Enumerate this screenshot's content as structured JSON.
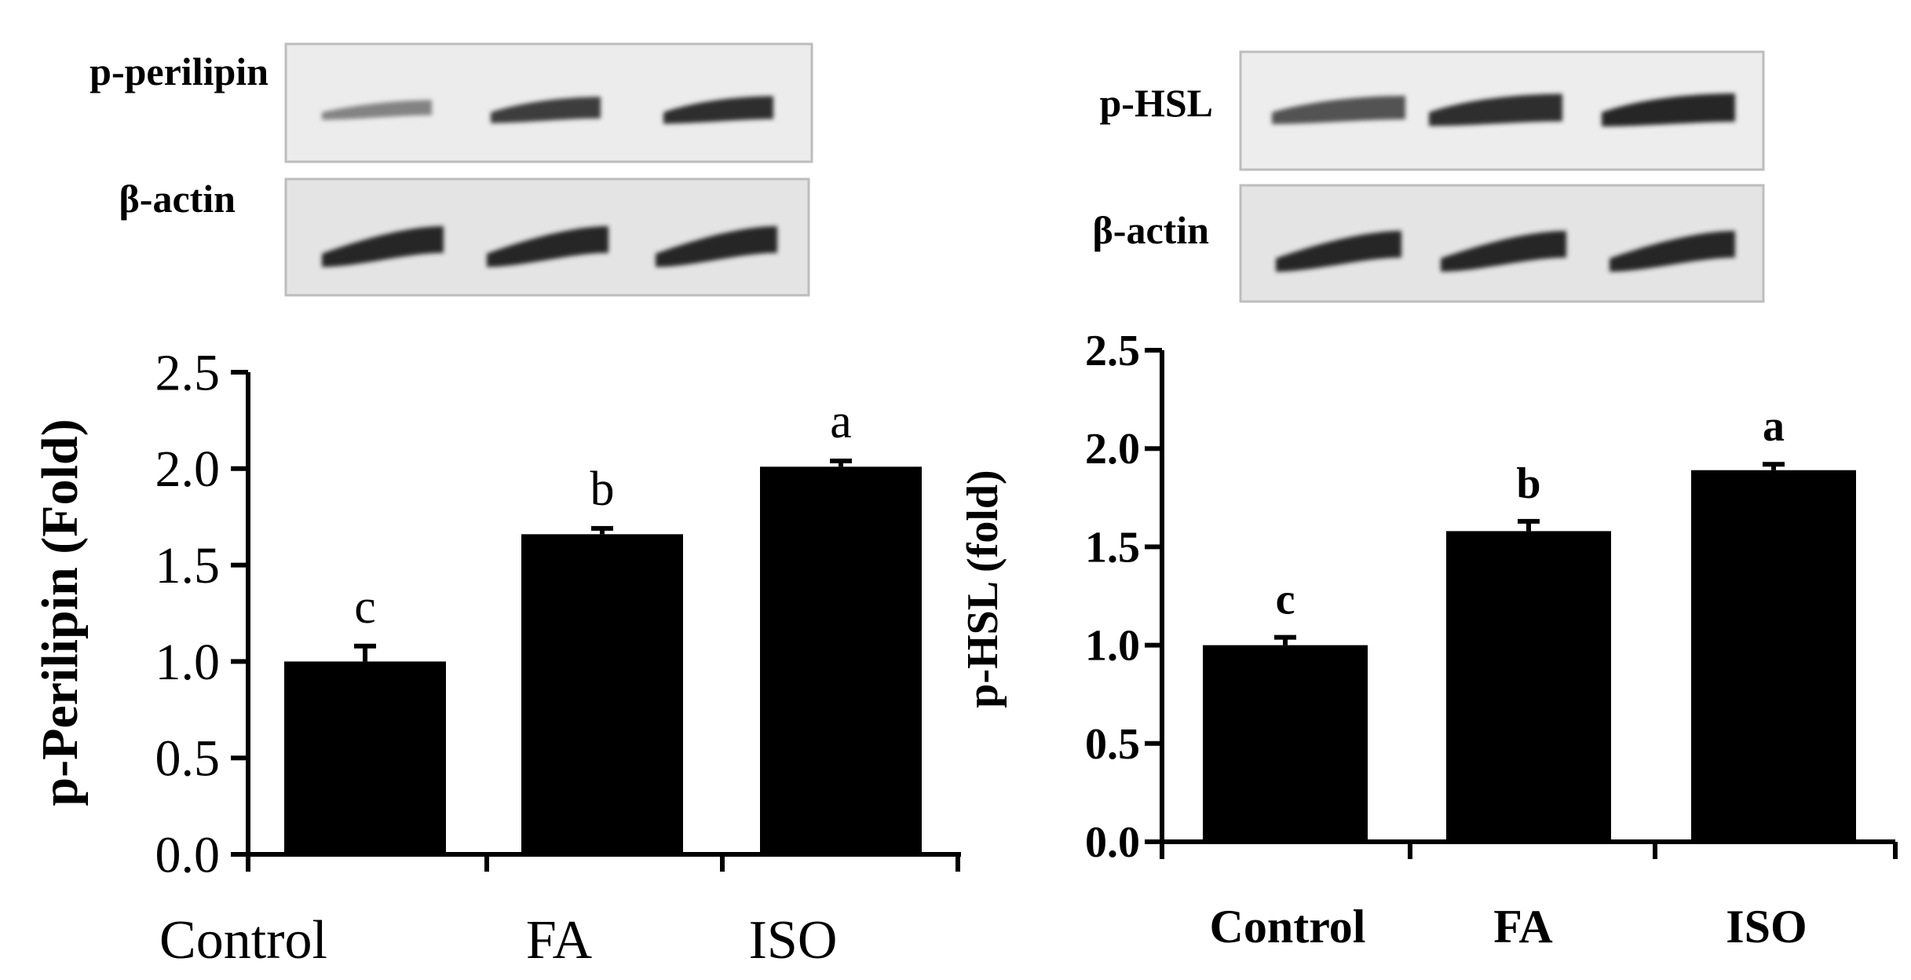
{
  "blots": [
    {
      "rows": [
        {
          "label": "p-perilipin",
          "intensities": [
            0.35,
            0.85,
            0.95
          ]
        },
        {
          "label": "β-actin",
          "intensities": [
            1.0,
            1.0,
            1.0
          ]
        }
      ]
    },
    {
      "rows": [
        {
          "label": "p-HSL",
          "intensities": [
            0.7,
            0.95,
            1.0
          ]
        },
        {
          "label": "β-actin",
          "intensities": [
            1.0,
            1.0,
            1.0
          ]
        }
      ]
    }
  ],
  "chart_data": [
    {
      "type": "bar",
      "categories": [
        "Control",
        "FA",
        "ISO"
      ],
      "values": [
        1.0,
        1.66,
        2.01
      ],
      "errors": [
        0.08,
        0.03,
        0.03
      ],
      "significance_letters": [
        "c",
        "b",
        "a"
      ],
      "ylabel": "p-Perilipin (Fold)",
      "ylim": [
        0,
        2.5
      ],
      "yticks": [
        "0.0",
        "0.5",
        "1.0",
        "1.5",
        "2.0",
        "2.5"
      ],
      "bar_color": "#000000",
      "grid": false,
      "legend": "none"
    },
    {
      "type": "bar",
      "categories": [
        "Control",
        "FA",
        "ISO"
      ],
      "values": [
        1.0,
        1.58,
        1.89
      ],
      "errors": [
        0.04,
        0.05,
        0.03
      ],
      "significance_letters": [
        "c",
        "b",
        "a"
      ],
      "ylabel": "p-HSL (fold)",
      "ylim": [
        0,
        2.5
      ],
      "yticks": [
        "0.0",
        "0.5",
        "1.0",
        "1.5",
        "2.0",
        "2.5"
      ],
      "bar_color": "#000000",
      "grid": false,
      "legend": "none"
    }
  ]
}
